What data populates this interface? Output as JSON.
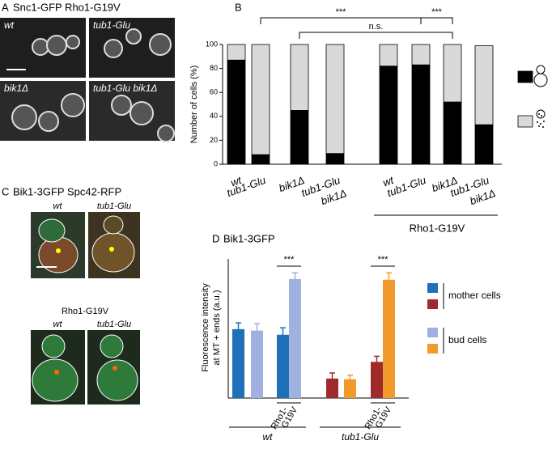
{
  "panel_a": {
    "label": "A",
    "title": "Snc1-GFP Rho1-G19V",
    "images": [
      "wt",
      "tub1-Glu",
      "bik1Δ",
      "tub1-Glu bik1Δ"
    ]
  },
  "panel_c": {
    "label": "C",
    "title": "Bik1-3GFP Spc42-RFP",
    "images": [
      "wt",
      "tub1-Glu"
    ],
    "subtitle": "Rho1-G19V",
    "images_rho": [
      "wt",
      "tub1-Glu"
    ]
  },
  "chart_data": [
    {
      "type": "stacked_bar",
      "label": "B",
      "ylabel": "Number of cells (%)",
      "categories": [
        [
          "wt"
        ],
        [
          "tub1-Glu"
        ],
        [
          "bik1Δ"
        ],
        [
          "tub1-Glu",
          "bik1Δ"
        ],
        [
          "wt"
        ],
        [
          "tub1-Glu"
        ],
        [
          "bik1Δ"
        ],
        [
          "tub1-Glu",
          "bik1Δ"
        ]
      ],
      "group_label": "Rho1-G19V",
      "series": [
        {
          "color": "#000000",
          "values": [
            87,
            8,
            45,
            9,
            82,
            83,
            52,
            33
          ]
        },
        {
          "color": "#d9d9d9",
          "values": [
            13,
            92,
            55,
            91,
            18,
            17,
            48,
            66
          ]
        }
      ],
      "ylim": [
        0,
        100
      ],
      "yticks": [
        0,
        20,
        40,
        60,
        80,
        100
      ],
      "comparisons": [
        {
          "categories": [
            1,
            5
          ],
          "label": "***"
        },
        {
          "categories": [
            2,
            6
          ],
          "label": "n.s."
        },
        {
          "categories": [
            5,
            6
          ],
          "label": "***"
        }
      ]
    },
    {
      "type": "bar_error",
      "label": "D",
      "title": "Bik1-3GFP",
      "ylabel": [
        "Fluorescence intensity",
        "at MT + ends (a.u.)"
      ],
      "groups": [
        "wt",
        "tub1-Glu"
      ],
      "subgroup_label": [
        "Rho1-",
        "G19V"
      ],
      "series": [
        {
          "name": "mother cells",
          "colors": [
            "#1f70b8",
            "#9e2a2b"
          ],
          "values": [
            9.9,
            9.1,
            2.8,
            5.2
          ],
          "errors": [
            0.9,
            1.0,
            0.8,
            0.8
          ]
        },
        {
          "name": "bud cells",
          "colors": [
            "#9fb1de",
            "#f39a2c"
          ],
          "values": [
            9.7,
            17.1,
            2.7,
            17.0
          ],
          "errors": [
            1.0,
            0.9,
            0.6,
            1.0
          ]
        }
      ],
      "ylim": [
        0,
        20
      ],
      "comparison_label": "***"
    }
  ]
}
